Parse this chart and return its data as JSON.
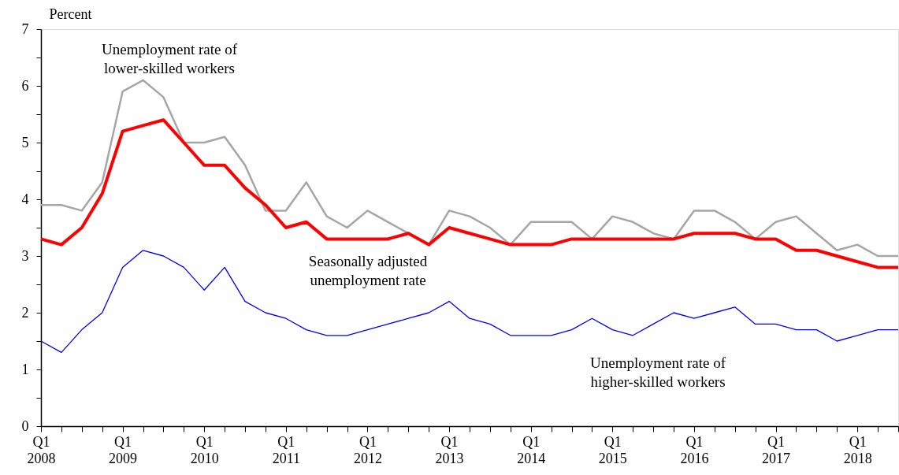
{
  "chart_data": {
    "type": "line",
    "ylabel": "Percent",
    "categories": [
      "Q1 2008",
      null,
      null,
      null,
      "Q1 2009",
      null,
      null,
      null,
      "Q1 2010",
      null,
      null,
      null,
      "Q1 2011",
      null,
      null,
      null,
      "Q1 2012",
      null,
      null,
      null,
      "Q1 2013",
      null,
      null,
      null,
      "Q1 2014",
      null,
      null,
      null,
      "Q1 2015",
      null,
      null,
      null,
      "Q1 2016",
      null,
      null,
      null,
      "Q1 2017",
      null,
      null,
      null,
      "Q1 2018",
      null,
      null
    ],
    "series": [
      {
        "name": "Unemployment rate of\nlower-skilled workers",
        "color": "#a6a6a6",
        "values": [
          3.9,
          3.9,
          3.8,
          4.3,
          5.9,
          6.1,
          5.8,
          5.0,
          5.0,
          5.1,
          4.6,
          3.8,
          3.8,
          4.3,
          3.7,
          3.5,
          3.8,
          3.6,
          3.4,
          3.2,
          3.8,
          3.7,
          3.5,
          3.2,
          3.6,
          3.6,
          3.6,
          3.3,
          3.7,
          3.6,
          3.4,
          3.3,
          3.8,
          3.8,
          3.6,
          3.3,
          3.6,
          3.7,
          3.4,
          3.1,
          3.2,
          3.0,
          3.0
        ]
      },
      {
        "name": "Seasonally adjusted\nunemployment rate",
        "color": "#ff0000",
        "values": [
          3.3,
          3.2,
          3.5,
          4.1,
          5.2,
          5.3,
          5.4,
          5.0,
          4.6,
          4.6,
          4.2,
          3.9,
          3.5,
          3.6,
          3.3,
          3.3,
          3.3,
          3.3,
          3.4,
          3.2,
          3.5,
          3.4,
          3.3,
          3.2,
          3.2,
          3.2,
          3.3,
          3.3,
          3.3,
          3.3,
          3.3,
          3.3,
          3.4,
          3.4,
          3.4,
          3.3,
          3.3,
          3.1,
          3.1,
          3.0,
          2.9,
          2.8,
          2.8
        ]
      },
      {
        "name": "Unemployment rate of\nhigher-skilled workers",
        "color": "#0000ff",
        "values": [
          1.5,
          1.3,
          1.7,
          2.0,
          2.8,
          3.1,
          3.0,
          2.8,
          2.4,
          2.8,
          2.2,
          2.0,
          1.9,
          1.7,
          1.6,
          1.6,
          1.7,
          1.8,
          1.9,
          2.0,
          2.2,
          1.9,
          1.8,
          1.6,
          1.6,
          1.6,
          1.7,
          1.9,
          1.7,
          1.6,
          1.8,
          2.0,
          1.9,
          2.0,
          2.1,
          1.8,
          1.8,
          1.7,
          1.7,
          1.5,
          1.6,
          1.7,
          1.7
        ]
      }
    ],
    "ylim": [
      0,
      7
    ],
    "yticks": [
      0,
      {
        "value": 0.5,
        "label": null
      },
      1,
      {
        "value": 1.5,
        "label": null
      },
      2,
      {
        "value": 2.5,
        "label": null
      },
      3,
      {
        "value": 3.5,
        "label": null
      },
      4,
      {
        "value": 4.5,
        "label": null
      },
      5,
      {
        "value": 5.5,
        "label": null
      },
      6,
      {
        "value": 6.5,
        "label": null
      },
      7
    ],
    "tick_labels": "xy"
  }
}
